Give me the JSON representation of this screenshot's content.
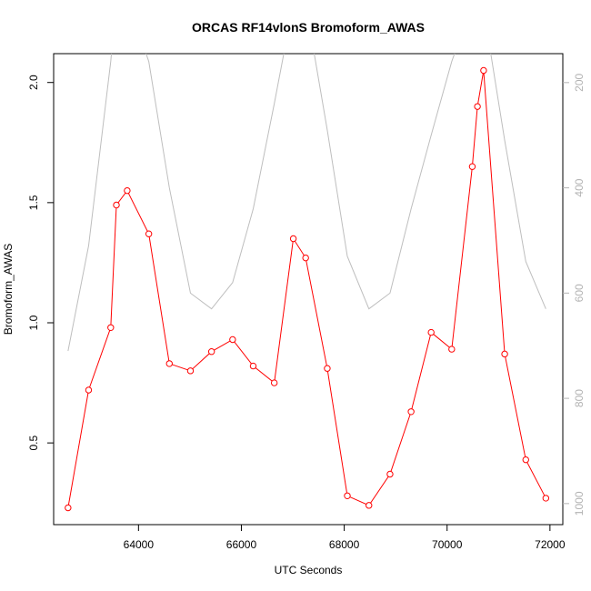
{
  "chart_data": {
    "type": "line",
    "title": "ORCAS RF14vlonS Bromoform_AWAS",
    "xlabel": "UTC Seconds",
    "ylabel": "Bromoform_AWAS",
    "xlim": [
      62350,
      72250
    ],
    "ylim": [
      0.16,
      2.12
    ],
    "y2lim": [
      1040,
      145
    ],
    "x_ticks": [
      64000,
      66000,
      68000,
      70000,
      72000
    ],
    "x_tick_labels": [
      "64000",
      "66000",
      "68000",
      "70000",
      "72000"
    ],
    "y_ticks": [
      0.5,
      1.0,
      1.5,
      2.0
    ],
    "y_tick_labels": [
      "0.5",
      "1.0",
      "1.5",
      "2.0"
    ],
    "y2_ticks": [
      200,
      400,
      600,
      800,
      1000
    ],
    "y2_tick_labels": [
      "200",
      "400",
      "600",
      "800",
      "1000"
    ],
    "y2_inverted": true,
    "grid": false,
    "series": [
      {
        "role": "primary",
        "color": "#ff0000",
        "marker": "open-circle",
        "x": [
          62630,
          63030,
          63460,
          63570,
          63780,
          64200,
          64600,
          65010,
          65420,
          65830,
          66230,
          66640,
          67010,
          67250,
          67670,
          68060,
          68480,
          68890,
          69300,
          69690,
          70090,
          70490,
          70590,
          70710,
          71120,
          71530,
          71920
        ],
        "values": [
          0.23,
          0.72,
          0.98,
          1.49,
          1.55,
          1.37,
          0.83,
          0.8,
          0.88,
          0.93,
          0.82,
          0.75,
          1.35,
          1.27,
          0.81,
          0.28,
          0.24,
          0.37,
          0.63,
          0.96,
          0.89,
          1.65,
          1.9,
          2.05,
          0.87,
          0.43,
          0.27
        ]
      },
      {
        "role": "secondary",
        "color": "#bebebe",
        "marker": "none",
        "x": [
          62630,
          63030,
          63460,
          63570,
          63780,
          64200,
          64600,
          65010,
          65420,
          65830,
          66230,
          66640,
          67010,
          67250,
          67670,
          68060,
          68480,
          68890,
          69300,
          69690,
          70090,
          70490,
          70590,
          70710,
          71120,
          71530,
          71920
        ],
        "values": [
          710,
          510,
          160,
          40,
          40,
          160,
          400,
          600,
          630,
          580,
          440,
          240,
          50,
          50,
          290,
          530,
          630,
          600,
          440,
          300,
          160,
          50,
          40,
          60,
          310,
          540,
          630
        ]
      }
    ]
  }
}
